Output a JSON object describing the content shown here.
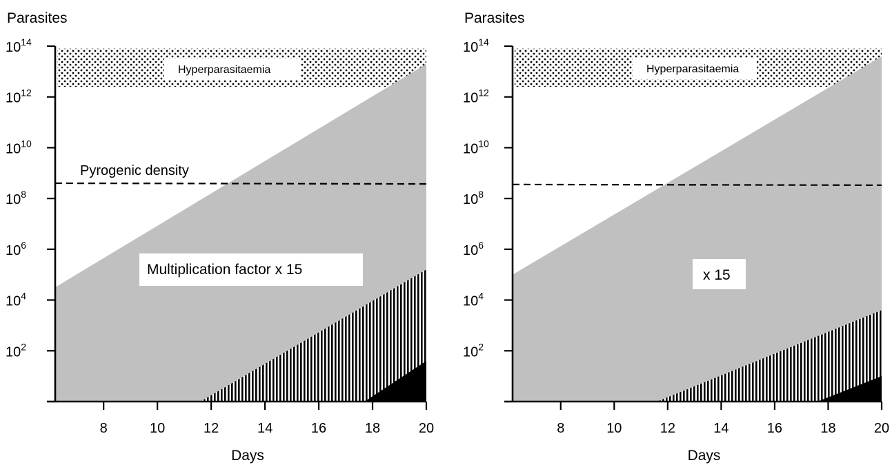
{
  "chart_data": [
    {
      "type": "area",
      "ylabel": "Parasites",
      "xlabel": "Days",
      "x_ticks": [
        8,
        10,
        12,
        14,
        16,
        18,
        20
      ],
      "xlim": [
        6.2,
        20
      ],
      "y_scale": "log10",
      "ylim_log10": [
        0,
        14
      ],
      "y_ticks": [
        {
          "base": "10",
          "exp": "2"
        },
        {
          "base": "10",
          "exp": "4"
        },
        {
          "base": "10",
          "exp": "6"
        },
        {
          "base": "10",
          "exp": "8"
        },
        {
          "base": "10",
          "exp": "10"
        },
        {
          "base": "10",
          "exp": "12"
        },
        {
          "base": "10",
          "exp": "14"
        }
      ],
      "hyperparasitaemia": {
        "label": "Hyperparasitaemia",
        "from_log10": 12.4,
        "to_log10": 13.9
      },
      "pyrogenic_density": {
        "label": "Pyrogenic density",
        "log10": 8.6
      },
      "multiplication_label": "Multiplication factor x 15",
      "regions": [
        {
          "pattern": "gray",
          "points": [
            [
              6.2,
              4.5
            ],
            [
              20,
              13.3
            ]
          ]
        },
        {
          "pattern": "striped",
          "points": [
            [
              11.6,
              0
            ],
            [
              20,
              5.2
            ]
          ]
        },
        {
          "pattern": "solid",
          "points": [
            [
              17.7,
              0
            ],
            [
              20,
              1.6
            ]
          ]
        }
      ]
    },
    {
      "type": "area",
      "ylabel": "Parasites",
      "xlabel": "Days",
      "x_ticks": [
        8,
        10,
        12,
        14,
        16,
        18,
        20
      ],
      "xlim": [
        6.2,
        20
      ],
      "y_scale": "log10",
      "ylim_log10": [
        0,
        14
      ],
      "y_ticks": [
        {
          "base": "10",
          "exp": "2"
        },
        {
          "base": "10",
          "exp": "4"
        },
        {
          "base": "10",
          "exp": "6"
        },
        {
          "base": "10",
          "exp": "8"
        },
        {
          "base": "10",
          "exp": "10"
        },
        {
          "base": "10",
          "exp": "12"
        },
        {
          "base": "10",
          "exp": "14"
        }
      ],
      "hyperparasitaemia": {
        "label": "Hyperparasitaemia",
        "from_log10": 12.4,
        "to_log10": 13.9
      },
      "pyrogenic_density": {
        "label": "",
        "log10": 8.55
      },
      "multiplication_label": "x 15",
      "regions": [
        {
          "pattern": "gray",
          "points": [
            [
              6.2,
              5.0
            ],
            [
              20,
              13.6
            ]
          ]
        },
        {
          "pattern": "striped",
          "points": [
            [
              11.6,
              0
            ],
            [
              20,
              3.6
            ]
          ]
        },
        {
          "pattern": "solid",
          "points": [
            [
              17.6,
              0
            ],
            [
              20,
              1.0
            ]
          ]
        }
      ]
    }
  ]
}
